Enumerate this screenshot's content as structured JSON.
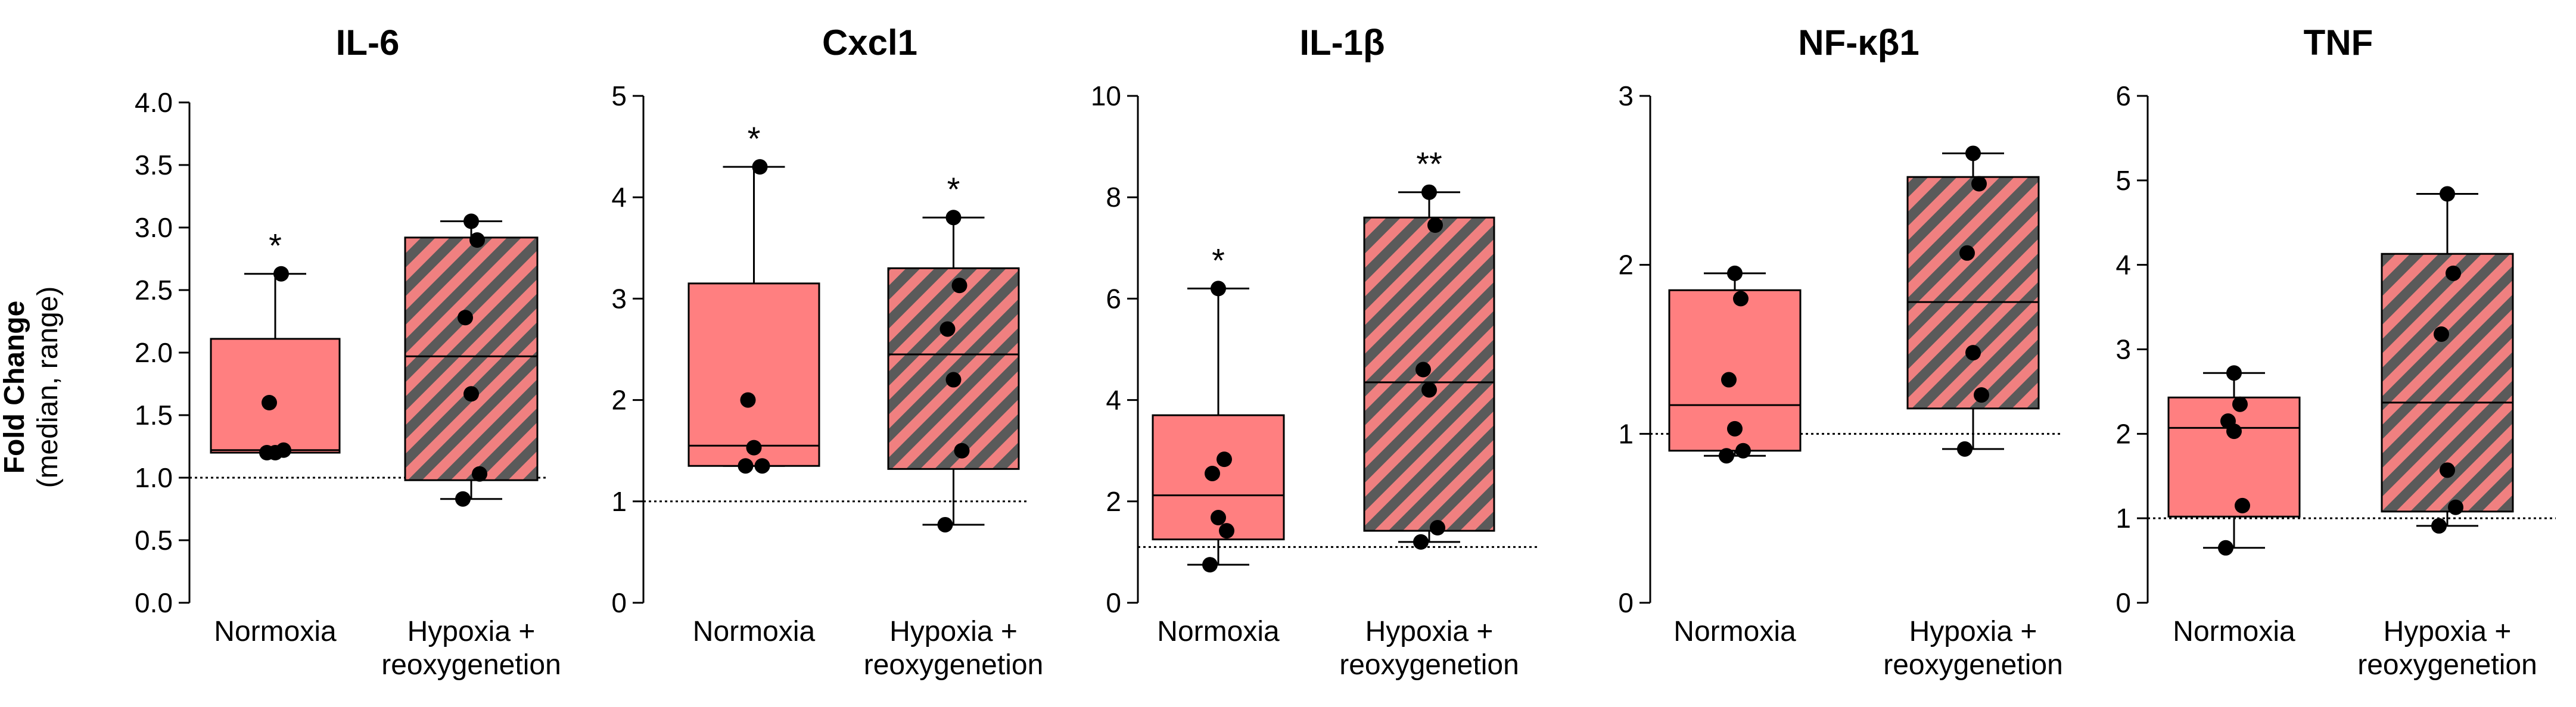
{
  "y_axis_label": {
    "main": "Fold Change",
    "sub": "(median, range)"
  },
  "chart_data": [
    {
      "type": "box",
      "title": "IL-6",
      "ylim": [
        0,
        4
      ],
      "yticks": [
        "0.0",
        "0.5",
        "1.0",
        "1.5",
        "2.0",
        "2.5",
        "3.0",
        "3.5",
        "4.0"
      ],
      "reference_line": 1.0,
      "categories": [
        {
          "label_lines": [
            "Normoxia"
          ],
          "pattern": "solid",
          "min": 1.2,
          "q1": 1.2,
          "median": 1.22,
          "q3": 2.11,
          "max": 2.63,
          "points": [
            1.2,
            1.22,
            1.2,
            1.6,
            2.63
          ],
          "significance": "*"
        },
        {
          "label_lines": [
            "Hypoxia +",
            "reoxygenetion"
          ],
          "pattern": "hatched",
          "min": 0.83,
          "q1": 0.98,
          "median": 1.97,
          "q3": 2.92,
          "max": 3.05,
          "points": [
            0.83,
            1.03,
            1.67,
            2.28,
            2.9,
            3.05
          ],
          "significance": ""
        }
      ]
    },
    {
      "type": "box",
      "title": "Cxcl1",
      "ylim": [
        0,
        5
      ],
      "yticks": [
        "0",
        "1",
        "2",
        "3",
        "4",
        "5"
      ],
      "reference_line": 1.0,
      "categories": [
        {
          "label_lines": [
            "Normoxia"
          ],
          "pattern": "solid",
          "min": 1.35,
          "q1": 1.35,
          "median": 1.55,
          "q3": 3.15,
          "max": 4.3,
          "points": [
            1.35,
            1.35,
            1.53,
            2.0,
            4.3
          ],
          "significance": "*"
        },
        {
          "label_lines": [
            "Hypoxia +",
            "reoxygenetion"
          ],
          "pattern": "hatched",
          "min": 0.77,
          "q1": 1.32,
          "median": 2.45,
          "q3": 3.3,
          "max": 3.8,
          "points": [
            0.77,
            1.5,
            2.2,
            2.7,
            3.13,
            3.8
          ],
          "significance": "*"
        }
      ]
    },
    {
      "type": "box",
      "title": "IL-1β",
      "ylim": [
        0,
        10
      ],
      "yticks": [
        "0",
        "2",
        "4",
        "6",
        "8",
        "10"
      ],
      "reference_line": 1.1,
      "categories": [
        {
          "label_lines": [
            "Normoxia"
          ],
          "pattern": "solid",
          "min": 0.75,
          "q1": 1.25,
          "median": 2.12,
          "q3": 3.7,
          "max": 6.2,
          "points": [
            0.75,
            1.42,
            1.68,
            2.55,
            2.83,
            6.2
          ],
          "significance": "*"
        },
        {
          "label_lines": [
            "Hypoxia +",
            "reoxygenetion"
          ],
          "pattern": "hatched",
          "min": 1.2,
          "q1": 1.42,
          "median": 4.35,
          "q3": 7.6,
          "max": 8.1,
          "points": [
            1.2,
            1.48,
            4.2,
            4.6,
            7.45,
            8.1
          ],
          "significance": "**"
        }
      ]
    },
    {
      "type": "box",
      "title": "NF-κβ1",
      "ylim": [
        0,
        3
      ],
      "yticks": [
        "0",
        "1",
        "2",
        "3"
      ],
      "reference_line": 1.0,
      "categories": [
        {
          "label_lines": [
            "Normoxia"
          ],
          "pattern": "solid",
          "min": 0.87,
          "q1": 0.9,
          "median": 1.17,
          "q3": 1.85,
          "max": 1.95,
          "points": [
            0.87,
            0.9,
            1.03,
            1.32,
            1.8,
            1.95
          ],
          "significance": ""
        },
        {
          "label_lines": [
            "Hypoxia +",
            "reoxygenetion"
          ],
          "pattern": "hatched",
          "min": 0.91,
          "q1": 1.15,
          "median": 1.78,
          "q3": 2.52,
          "max": 2.66,
          "points": [
            0.91,
            1.23,
            1.48,
            2.07,
            2.48,
            2.66
          ],
          "significance": ""
        }
      ]
    },
    {
      "type": "box",
      "title": "TNF",
      "ylim": [
        0,
        6
      ],
      "yticks": [
        "0",
        "1",
        "2",
        "3",
        "4",
        "5",
        "6"
      ],
      "reference_line": 1.0,
      "categories": [
        {
          "label_lines": [
            "Normoxia"
          ],
          "pattern": "solid",
          "min": 0.65,
          "q1": 1.02,
          "median": 2.07,
          "q3": 2.43,
          "max": 2.72,
          "points": [
            0.65,
            1.15,
            2.03,
            2.15,
            2.35,
            2.72
          ],
          "significance": ""
        },
        {
          "label_lines": [
            "Hypoxia +",
            "reoxygenetion"
          ],
          "pattern": "hatched",
          "min": 0.91,
          "q1": 1.08,
          "median": 2.37,
          "q3": 4.13,
          "max": 4.84,
          "points": [
            0.91,
            1.13,
            1.57,
            3.18,
            3.9,
            4.84
          ],
          "significance": ""
        }
      ]
    }
  ],
  "colors": {
    "normoxia_fill": "#ff7f80",
    "hatch_light": "#f08080",
    "hatch_dark": "#5a5a5a",
    "axis": "#000000",
    "point": "#000000"
  }
}
